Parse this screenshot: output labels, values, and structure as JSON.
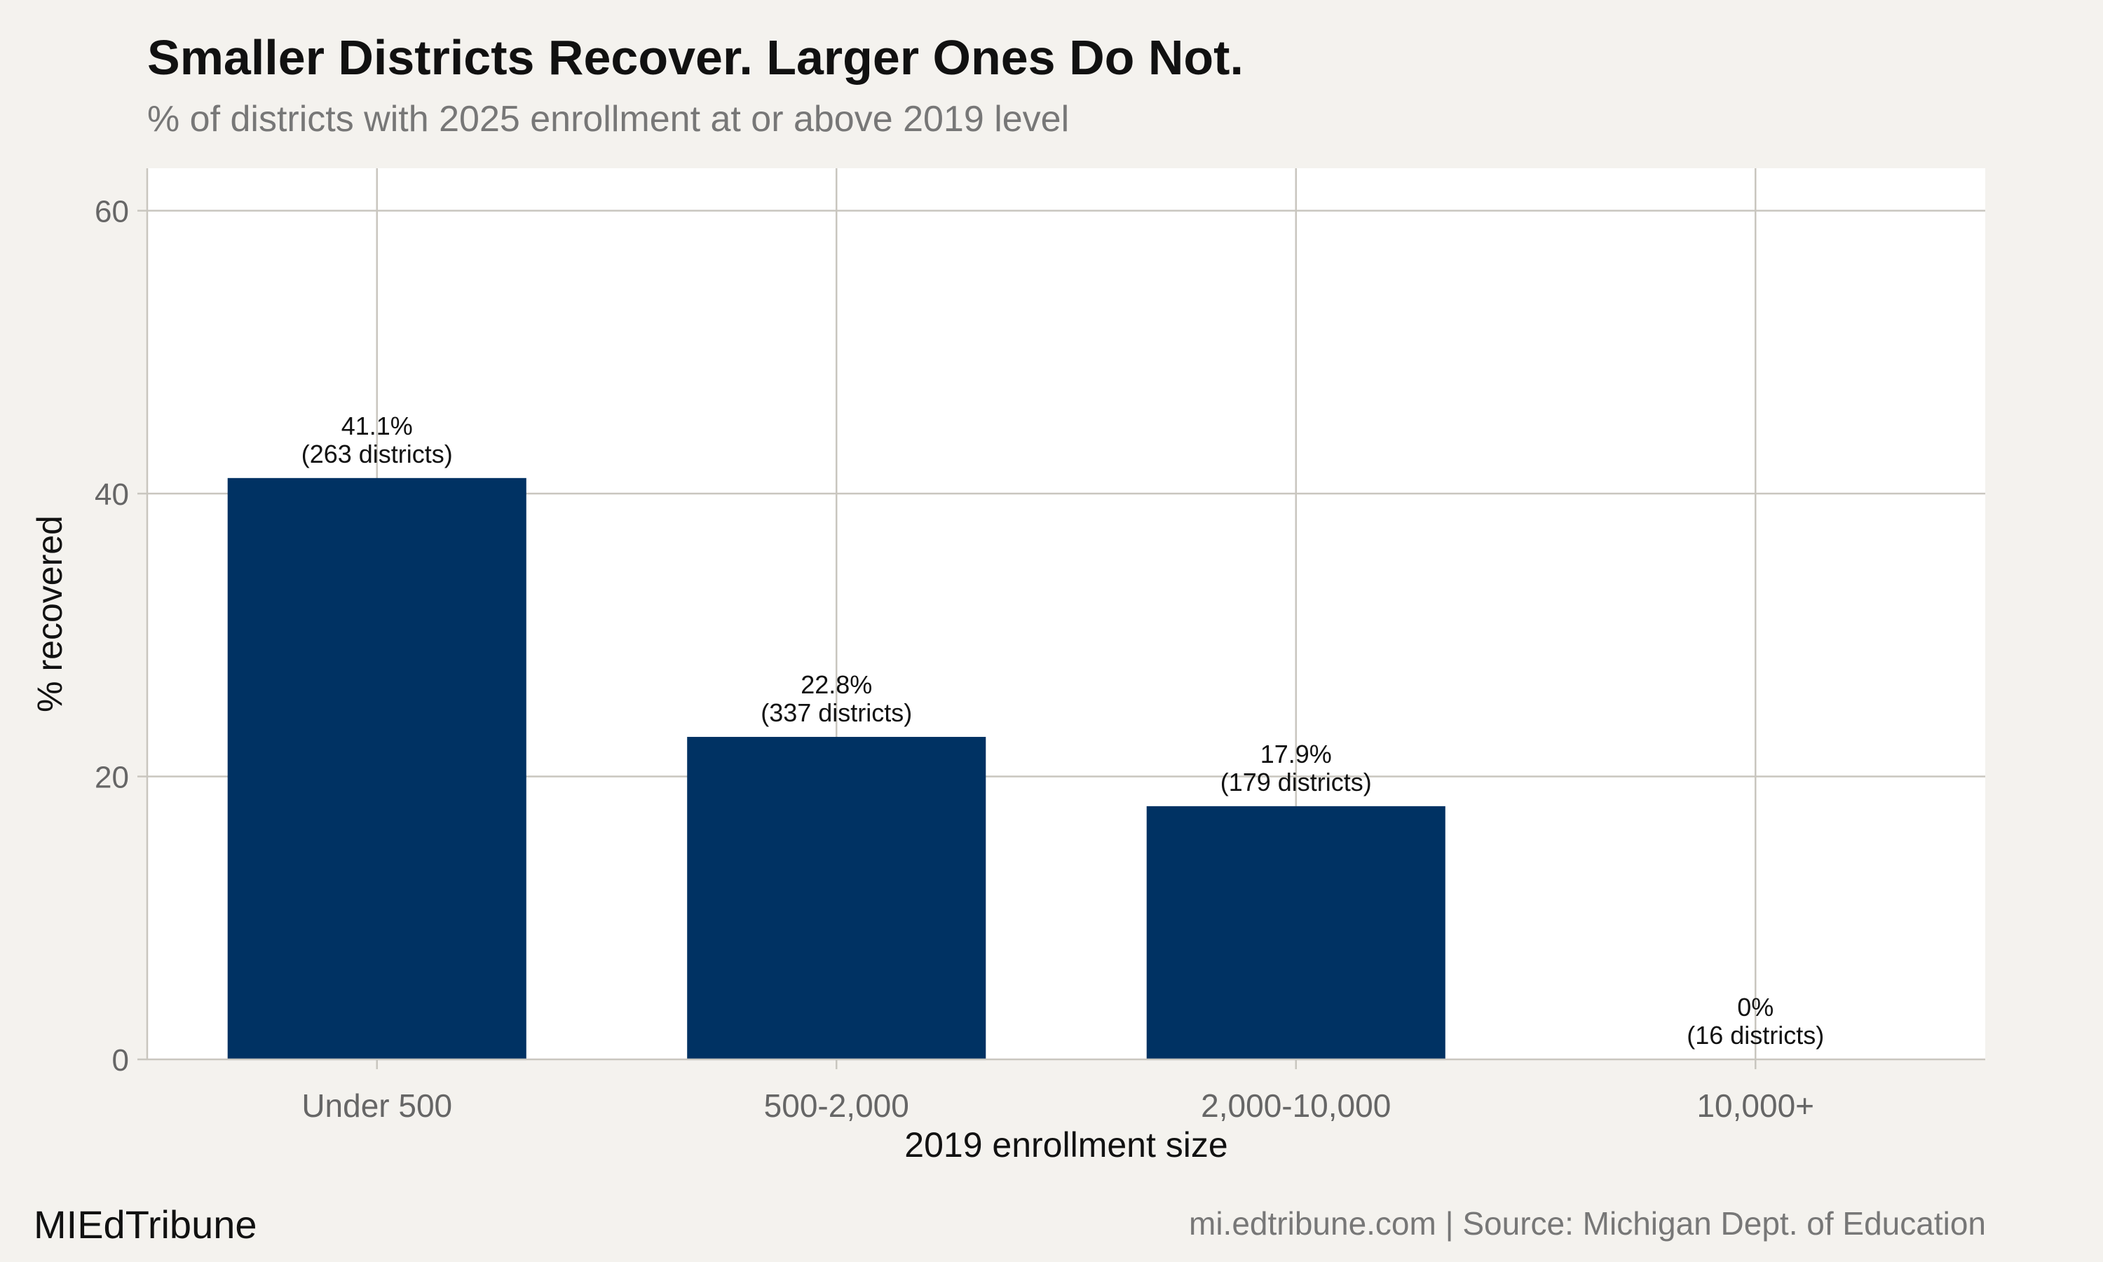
{
  "header": {
    "title": "Smaller Districts Recover. Larger Ones Do Not.",
    "subtitle": "% of districts with 2025 enrollment at or above 2019 level"
  },
  "footer": {
    "brand": "MIEdTribune",
    "source": "mi.edtribune.com | Source: Michigan Dept. of Education"
  },
  "colors": {
    "bar": "#003263",
    "panel": "#ffffff",
    "background": "#f4f2ee",
    "grid": "#c9c6bf"
  },
  "chart_data": {
    "type": "bar",
    "categories": [
      "Under 500",
      "500-2,000",
      "2,000-10,000",
      "10,000+"
    ],
    "values": [
      41.1,
      22.8,
      17.9,
      0
    ],
    "value_labels": [
      "41.1%",
      "22.8%",
      "17.9%",
      "0%"
    ],
    "count_labels": [
      "(263 districts)",
      "(337 districts)",
      "(179 districts)",
      "(16 districts)"
    ],
    "district_counts": [
      263,
      337,
      179,
      16
    ],
    "xlabel": "2019 enrollment size",
    "ylabel": "% recovered",
    "ylim": [
      0,
      63
    ],
    "yticks": [
      0,
      20,
      40,
      60
    ],
    "grid": true,
    "legend": "none"
  }
}
